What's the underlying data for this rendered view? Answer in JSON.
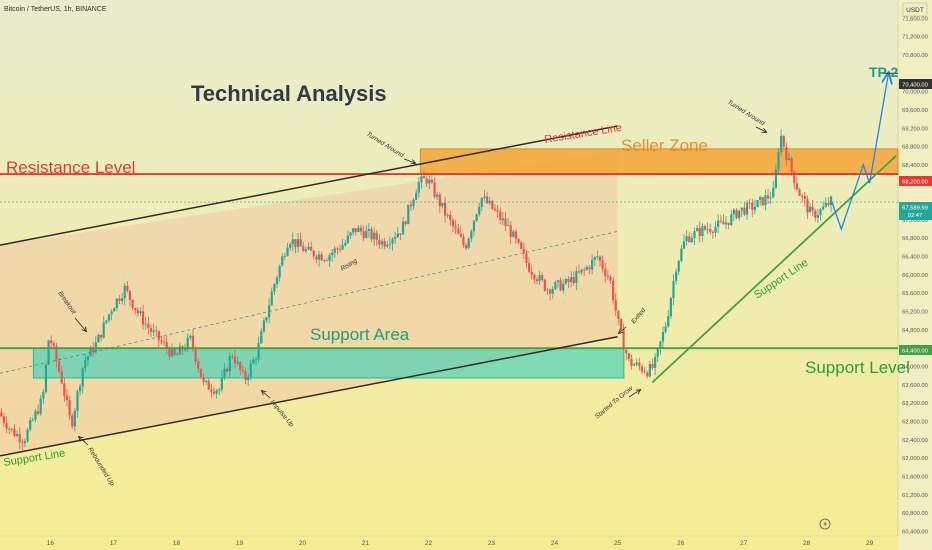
{
  "header": {
    "symbol": "Bitcoin / TetherUS, 1h, BINANCE",
    "currency": "USDT"
  },
  "annotations": {
    "title": "Technical Analysis",
    "resistance_level": "Resistance Level",
    "resistance_line": "Resistance Line",
    "seller_zone": "Seller Zone",
    "support_area": "Support Area",
    "support_level": "Support Level",
    "support_line_left": "Support Line",
    "support_line_right": "Support Line",
    "tp2": "TP 2",
    "turned_around_1": "Turned Around",
    "turned_around_2": "Turned Around",
    "breakout": "Breakout",
    "rebounded_up": "Rebounded Up",
    "impulse_up": "Impulse Up",
    "rising": "Rising",
    "exited": "Exited",
    "started_to_grow": "Started To Grow"
  },
  "price_tags": {
    "tp2": "70,400.00",
    "resistance": "68,200.00",
    "current": "67,589.99",
    "countdown": "02:47",
    "support": "64,400.00"
  },
  "colors": {
    "background_top": "#e9edcd",
    "background_bottom": "#f5ec92",
    "bull": "#26a69a",
    "bear": "#ef5350",
    "resistance_red": "#e53935",
    "support_green": "#43a047",
    "seller_zone": "#f2a53a",
    "support_area": "#4fd1b9",
    "channel_fill": "#f0c9a6",
    "tp_arrow": "#1e88e5"
  },
  "chart_data": {
    "type": "candlestick",
    "symbol": "BTC/USDT",
    "timeframe": "1h",
    "x_tick_labels": [
      "16",
      "17",
      "18",
      "19",
      "20",
      "21",
      "22",
      "23",
      "24",
      "25",
      "26",
      "27",
      "28",
      "29"
    ],
    "y_tick_labels": [
      "71,600.00",
      "71,200.00",
      "70,800.00",
      "70,000.00",
      "69,600.00",
      "69,200.00",
      "68,800.00",
      "68,400.00",
      "67,200.00",
      "66,800.00",
      "66,400.00",
      "66,000.00",
      "65,600.00",
      "65,200.00",
      "64,800.00",
      "64,000.00",
      "63,600.00",
      "63,200.00",
      "62,800.00",
      "62,400.00",
      "62,000.00",
      "61,600.00",
      "61,200.00",
      "60,800.00",
      "60,400.00"
    ],
    "ylim": [
      60300,
      72000
    ],
    "xlim": [
      15.2,
      29.45
    ],
    "levels": {
      "resistance": 68200,
      "support": 64400,
      "tp2": 70400,
      "current": 67589.99
    },
    "zones": {
      "seller_zone": {
        "x": [
          21.87,
          29.45
        ],
        "y": [
          68200,
          68750
        ]
      },
      "support_area": {
        "x": [
          15.73,
          25.1
        ],
        "y": [
          63750,
          64400
        ]
      }
    },
    "price_path": [
      [
        15.2,
        63000
      ],
      [
        15.4,
        62600
      ],
      [
        15.6,
        62400
      ],
      [
        15.9,
        63300
      ],
      [
        16.0,
        64700
      ],
      [
        16.2,
        63700
      ],
      [
        16.35,
        62700
      ],
      [
        16.55,
        64100
      ],
      [
        16.75,
        64500
      ],
      [
        17.0,
        65300
      ],
      [
        17.2,
        65700
      ],
      [
        17.4,
        65200
      ],
      [
        17.6,
        64800
      ],
      [
        17.8,
        64500
      ],
      [
        18.0,
        64200
      ],
      [
        18.25,
        64600
      ],
      [
        18.45,
        63600
      ],
      [
        18.7,
        63500
      ],
      [
        18.9,
        64300
      ],
      [
        19.1,
        63700
      ],
      [
        19.3,
        64300
      ],
      [
        19.55,
        65700
      ],
      [
        19.8,
        66800
      ],
      [
        20.1,
        66500
      ],
      [
        20.4,
        66400
      ],
      [
        20.7,
        66700
      ],
      [
        20.85,
        67000
      ],
      [
        21.05,
        66900
      ],
      [
        21.3,
        66700
      ],
      [
        21.6,
        67000
      ],
      [
        21.85,
        68000
      ],
      [
        22.0,
        68100
      ],
      [
        22.3,
        67300
      ],
      [
        22.6,
        66600
      ],
      [
        22.85,
        67700
      ],
      [
        23.0,
        67500
      ],
      [
        23.3,
        67000
      ],
      [
        23.6,
        66200
      ],
      [
        23.9,
        65700
      ],
      [
        24.2,
        65800
      ],
      [
        24.5,
        66100
      ],
      [
        24.7,
        66400
      ],
      [
        24.9,
        65900
      ],
      [
        25.05,
        64800
      ],
      [
        25.2,
        64100
      ],
      [
        25.5,
        63900
      ],
      [
        25.6,
        64000
      ],
      [
        25.8,
        65000
      ],
      [
        25.95,
        66200
      ],
      [
        26.1,
        66800
      ],
      [
        26.4,
        67000
      ],
      [
        26.7,
        67100
      ],
      [
        26.95,
        67400
      ],
      [
        27.2,
        67500
      ],
      [
        27.5,
        67800
      ],
      [
        27.6,
        69100
      ],
      [
        27.75,
        68400
      ],
      [
        27.9,
        67800
      ],
      [
        28.1,
        67300
      ],
      [
        28.25,
        67400
      ],
      [
        28.4,
        67600
      ]
    ],
    "projection": [
      [
        28.4,
        67600
      ],
      [
        28.55,
        67000
      ],
      [
        28.9,
        68400
      ],
      [
        29.0,
        68000
      ],
      [
        29.3,
        70400
      ]
    ],
    "trendlines": {
      "resistance_line": [
        [
          15.2,
          66650
        ],
        [
          25.0,
          69250
        ]
      ],
      "channel_support_line": [
        [
          15.2,
          62050
        ],
        [
          25.0,
          64650
        ]
      ],
      "support_line": [
        [
          25.55,
          63650
        ],
        [
          29.42,
          68600
        ]
      ]
    }
  }
}
